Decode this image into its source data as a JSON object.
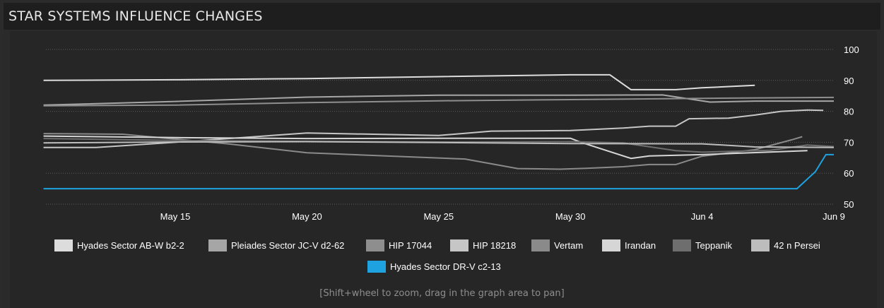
{
  "panel": {
    "title": "STAR SYSTEMS INFLUENCE CHANGES",
    "hint": "[Shift+wheel to zoom, drag in the graph area to pan]"
  },
  "colors": {
    "background": "#2a2a2a",
    "header": "#1e1e1e",
    "grid": "#5a5a5a",
    "highlight": "#1ea3e0"
  },
  "chart_data": {
    "type": "line",
    "title": "STAR SYSTEMS INFLUENCE CHANGES",
    "xlabel": "",
    "ylabel": "",
    "x_ticks": [
      "May 15",
      "May 20",
      "May 25",
      "May 30",
      "Jun 4",
      "Jun 9"
    ],
    "y_ticks": [
      50,
      60,
      70,
      80,
      90,
      100
    ],
    "ylim": [
      50,
      100
    ],
    "grid": "horizontal dotted",
    "legend_position": "bottom",
    "series": [
      {
        "name": "Hyades Sector AB-W b2-2",
        "color": "#dcdcdc",
        "points": [
          [
            "May 10",
            90
          ],
          [
            "May 15",
            90.2
          ],
          [
            "May 20",
            90.6
          ],
          [
            "May 25",
            91.2
          ],
          [
            "May 30",
            91.8
          ],
          [
            "May 31.5",
            91.8
          ],
          [
            "Jun 1.3",
            87
          ],
          [
            "Jun 3",
            87
          ],
          [
            "Jun 4",
            87.6
          ],
          [
            "Jun 6",
            88.4
          ]
        ]
      },
      {
        "name": "Pleiades Sector JC-V d2-62",
        "color": "#a6a6a6",
        "points": [
          [
            "May 10",
            82
          ],
          [
            "May 15",
            83.2
          ],
          [
            "May 20",
            84.6
          ],
          [
            "May 25",
            85.2
          ],
          [
            "May 30",
            85.2
          ],
          [
            "Jun 2.5",
            85.3
          ],
          [
            "Jun 4.3",
            83
          ],
          [
            "Jun 6",
            83.3
          ],
          [
            "Jun 9",
            83.3
          ]
        ]
      },
      {
        "name": "HIP 17044",
        "color": "#8e8e8e",
        "points": [
          [
            "May 10",
            81.8
          ],
          [
            "May 15",
            82
          ],
          [
            "May 20",
            82.8
          ],
          [
            "May 25",
            83.4
          ],
          [
            "May 30",
            83.8
          ],
          [
            "Jun 4",
            84.2
          ],
          [
            "Jun 9",
            84.5
          ]
        ]
      },
      {
        "name": "HIP 18218",
        "color": "#c6c6c6",
        "points": [
          [
            "May 10",
            68.3
          ],
          [
            "May 12",
            68.3
          ],
          [
            "May 15",
            70
          ],
          [
            "May 20",
            73
          ],
          [
            "May 25",
            72.2
          ],
          [
            "May 27",
            73.6
          ],
          [
            "May 30",
            73.8
          ],
          [
            "Jun 1",
            74.6
          ],
          [
            "Jun 2",
            75.2
          ],
          [
            "Jun 3",
            75.2
          ],
          [
            "Jun 3.5",
            77.6
          ],
          [
            "Jun 5",
            77.8
          ],
          [
            "Jun 6",
            78.8
          ],
          [
            "Jun 7",
            80
          ],
          [
            "Jun 8",
            80.4
          ],
          [
            "Jun 8.6",
            80.3
          ]
        ]
      },
      {
        "name": "Vertam",
        "color": "#8a8a8a",
        "points": [
          [
            "May 10",
            72.8
          ],
          [
            "May 13",
            72.6
          ],
          [
            "May 17",
            69.5
          ],
          [
            "May 20",
            66.6
          ],
          [
            "May 26",
            64.6
          ],
          [
            "May 28",
            61.5
          ],
          [
            "May 29.6",
            61.3
          ],
          [
            "May 30.6",
            61.6
          ],
          [
            "Jun 1",
            62.1
          ],
          [
            "Jun 2",
            62.8
          ],
          [
            "Jun 3",
            62.8
          ],
          [
            "Jun 4",
            65.5
          ],
          [
            "Jun 6",
            67.6
          ],
          [
            "Jun 7.4",
            70.8
          ],
          [
            "Jun 7.8",
            71.8
          ]
        ]
      },
      {
        "name": "Irandan",
        "color": "#d6d6d6",
        "points": [
          [
            "May 10",
            72
          ],
          [
            "May 15",
            71.5
          ],
          [
            "May 20",
            71.2
          ],
          [
            "May 25",
            71.3
          ],
          [
            "May 30",
            71.3
          ],
          [
            "May 30.4",
            70
          ],
          [
            "Jun 1.3",
            64.8
          ],
          [
            "Jun 2",
            65.6
          ],
          [
            "Jun 4",
            66
          ],
          [
            "Jun 8",
            67.3
          ]
        ]
      },
      {
        "name": "Teppanik",
        "color": "#6e6e6e",
        "points": [
          [
            "May 10",
            71.2
          ],
          [
            "May 15",
            70.6
          ],
          [
            "May 20",
            70.3
          ],
          [
            "May 25",
            70.1
          ],
          [
            "May 30",
            70.2
          ],
          [
            "Jun 1",
            69.8
          ],
          [
            "Jun 3",
            67.3
          ],
          [
            "Jun 4",
            66.8
          ],
          [
            "Jun 6.6",
            67.4
          ],
          [
            "Jun 8",
            69.1
          ],
          [
            "Jun 9",
            68.6
          ]
        ]
      },
      {
        "name": "42 n Persei",
        "color": "#bdbdbd",
        "points": [
          [
            "May 10",
            69.8
          ],
          [
            "May 15",
            70.1
          ],
          [
            "May 20",
            70.2
          ],
          [
            "May 25",
            69.9
          ],
          [
            "May 30",
            69.6
          ],
          [
            "Jun 4",
            69.5
          ],
          [
            "Jun 6",
            68.5
          ],
          [
            "Jun 9",
            68.3
          ]
        ]
      },
      {
        "name": "Hyades Sector DR-V c2-13",
        "color": "#1ea3e0",
        "points": [
          [
            "May 10",
            55
          ],
          [
            "May 15",
            55
          ],
          [
            "May 20",
            55
          ],
          [
            "May 25",
            55
          ],
          [
            "May 30",
            55
          ],
          [
            "Jun 4",
            55
          ],
          [
            "Jun 7.6",
            55
          ],
          [
            "Jun 8.3",
            60.5
          ],
          [
            "Jun 8.7",
            66
          ],
          [
            "Jun 9",
            66
          ]
        ]
      }
    ]
  }
}
